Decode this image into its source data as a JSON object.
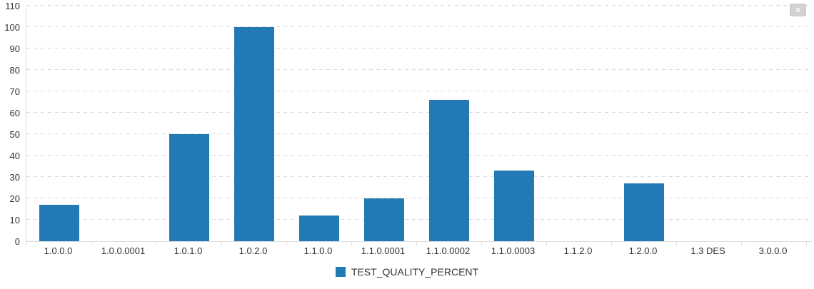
{
  "close_button": {
    "label": "×"
  },
  "chart_data": {
    "type": "bar",
    "title": "",
    "xlabel": "",
    "ylabel": "",
    "categories": [
      "1.0.0.0",
      "1.0.0.0001",
      "1.0.1.0",
      "1.0.2.0",
      "1.1.0.0",
      "1.1.0.0001",
      "1.1.0.0002",
      "1.1.0.0003",
      "1.1.2.0",
      "1.2.0.0",
      "1.3 DES",
      "3.0.0.0"
    ],
    "series": [
      {
        "name": "TEST_QUALITY_PERCENT",
        "values": [
          17,
          0,
          50,
          100,
          12,
          20,
          66,
          33,
          0,
          27,
          0,
          0
        ],
        "color": "#2279b5"
      }
    ],
    "ylim": [
      0,
      110
    ],
    "ytick_step": 10,
    "grid": "horizontal-dashed",
    "gridline_color": "#d9d9d9",
    "axis_color": "#dddddd",
    "legend_position": "bottom-center"
  }
}
